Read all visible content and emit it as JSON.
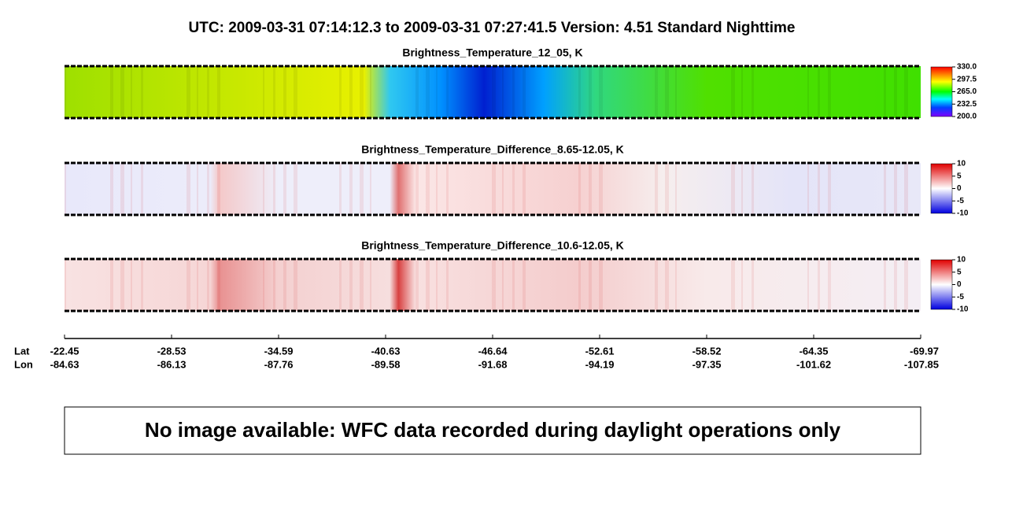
{
  "title": "UTC:  2009-03-31   07:14:12.3  to  2009-03-31   07:27:41.5    Version: 4.51  Standard Nighttime",
  "panels": [
    {
      "title": "Brightness_Temperature_12_05, K",
      "clim": [
        200,
        330
      ],
      "colorbar_ticks": [
        {
          "value": 330,
          "label": "330.0"
        },
        {
          "value": 297.5,
          "label": "297.5"
        },
        {
          "value": 265,
          "label": "265.0"
        },
        {
          "value": 232.5,
          "label": "232.5"
        },
        {
          "value": 200,
          "label": "200.0"
        }
      ]
    },
    {
      "title": "Brightness_Temperature_Difference_8.65-12.05, K",
      "clim": [
        -10,
        10
      ],
      "colorbar_ticks": [
        10,
        5,
        0,
        -5,
        -10
      ]
    },
    {
      "title": "Brightness_Temperature_Difference_10.6-12.05, K",
      "clim": [
        -10,
        10
      ],
      "colorbar_ticks": [
        10,
        5,
        0,
        -5,
        -10
      ]
    }
  ],
  "x_axis": {
    "row_labels": [
      "Lat",
      "Lon"
    ],
    "lat": [
      -22.45,
      -28.53,
      -34.59,
      -40.63,
      -46.64,
      -52.61,
      -58.52,
      -64.35,
      -69.97
    ],
    "lon": [
      -84.63,
      -86.13,
      -87.76,
      -89.58,
      -91.68,
      -94.19,
      -97.35,
      -101.62,
      -107.85
    ]
  },
  "note": "No image available: WFC data recorded during daylight operations only"
}
